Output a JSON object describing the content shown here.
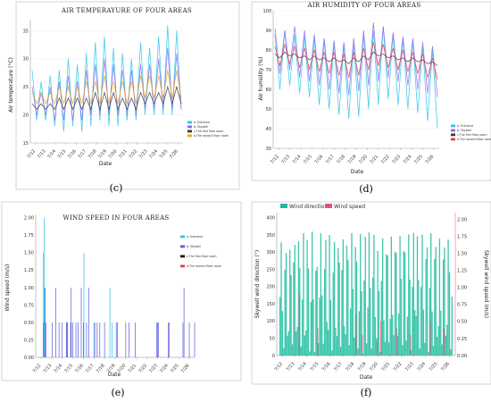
{
  "chart_data": [
    {
      "id": "c",
      "type": "line",
      "panel_label": "(c)",
      "title": "AIR TEMPERAYURE OF FOUR AREAS",
      "xlabel": "Date",
      "ylabel": "Air temperature (°C)",
      "x_ticks": [
        "7/12",
        "7/13",
        "7/14",
        "7/15",
        "7/16",
        "7/17",
        "7/18",
        "7/19",
        "7/20",
        "7/21",
        "7/22",
        "7/23",
        "7/24",
        "7/25",
        "7/26"
      ],
      "ylim": [
        15,
        37
      ],
      "y_ticks": [
        15,
        20,
        25,
        30,
        35
      ],
      "legend_position": "right",
      "series": [
        {
          "name": "a. Entrance",
          "color": "#29c4e8",
          "values": [
            28,
            19,
            26,
            19,
            27,
            18,
            28,
            17,
            30,
            18,
            29,
            17,
            31,
            18,
            33,
            19,
            34,
            18,
            32,
            18,
            31,
            19,
            30,
            19,
            33,
            20,
            32,
            20,
            34,
            20,
            36,
            20,
            35,
            21
          ]
        },
        {
          "name": "b. Skywell",
          "color": "#8a6cf0",
          "values": [
            25,
            20,
            24,
            20,
            25,
            19,
            26,
            19,
            27,
            19,
            26,
            19,
            28,
            20,
            29,
            20,
            30,
            20,
            29,
            20,
            28,
            20,
            28,
            20,
            29,
            21,
            29,
            21,
            30,
            21,
            32,
            21,
            31,
            21
          ]
        },
        {
          "name": "c.The first floor room",
          "color": "#3a3a3a",
          "values": [
            22,
            21,
            22,
            21,
            22,
            21,
            23,
            21,
            23,
            21,
            23,
            21,
            23,
            21,
            24,
            21,
            24,
            21,
            24,
            21,
            23,
            21,
            23,
            21,
            24,
            22,
            24,
            22,
            24,
            22,
            25,
            22,
            25,
            22
          ]
        },
        {
          "name": "d.The second floor room",
          "color": "#f5a623",
          "values": [
            24,
            22,
            24,
            22,
            24,
            22,
            25,
            22,
            25,
            22,
            25,
            22,
            26,
            22,
            26,
            22,
            27,
            22,
            26,
            22,
            26,
            22,
            26,
            22,
            27,
            23,
            27,
            23,
            27,
            23,
            28,
            23,
            28,
            23
          ]
        }
      ]
    },
    {
      "id": "d",
      "type": "line",
      "panel_label": "(d)",
      "title": "AIR HUMIDITY OF FOUR AREAS",
      "xlabel": "Date",
      "ylabel": "Air humidity (%)",
      "x_ticks": [
        "7/12",
        "7/13",
        "7/14",
        "7/15",
        "7/16",
        "7/17",
        "7/18",
        "7/19",
        "7/20",
        "7/21",
        "7/22",
        "7/23",
        "7/24",
        "7/25",
        "7/26"
      ],
      "ylim": [
        30,
        100
      ],
      "y_ticks": [
        30,
        40,
        50,
        60,
        70,
        80,
        90,
        100
      ],
      "legend_position": "right",
      "series": [
        {
          "name": "a. Entrance",
          "color": "#29c4e8",
          "values": [
            88,
            60,
            90,
            62,
            88,
            58,
            87,
            56,
            86,
            52,
            85,
            50,
            84,
            47,
            83,
            45,
            84,
            46,
            88,
            50,
            90,
            52,
            92,
            55,
            88,
            52,
            86,
            50,
            85,
            48,
            82,
            44,
            80,
            40
          ]
        },
        {
          "name": "b. Skywell",
          "color": "#8a6cf0",
          "values": [
            91,
            68,
            90,
            70,
            92,
            66,
            90,
            64,
            88,
            62,
            86,
            60,
            85,
            58,
            84,
            57,
            86,
            59,
            90,
            62,
            94,
            64,
            92,
            66,
            89,
            64,
            87,
            62,
            86,
            60,
            84,
            58,
            82,
            56
          ]
        },
        {
          "name": "c.The first floor room",
          "color": "#3a3a3a",
          "values": [
            78,
            76,
            79,
            77,
            78,
            76,
            77,
            75,
            77,
            75,
            76,
            74,
            76,
            74,
            75,
            73,
            76,
            74,
            77,
            75,
            79,
            77,
            78,
            76,
            77,
            75,
            76,
            74,
            76,
            74,
            75,
            73,
            74,
            72
          ]
        },
        {
          "name": "d.The second floor room",
          "color": "#e8394a",
          "values": [
            82,
            72,
            83,
            73,
            82,
            71,
            81,
            70,
            80,
            69,
            79,
            68,
            79,
            67,
            78,
            66,
            79,
            67,
            81,
            70,
            84,
            72,
            83,
            71,
            81,
            70,
            80,
            69,
            79,
            68,
            78,
            66,
            76,
            65
          ]
        }
      ]
    },
    {
      "id": "e",
      "type": "bar",
      "panel_label": "(e)",
      "title": "WIND SPEED IN FOUR AREAS",
      "xlabel": "Date",
      "ylabel": "Wind speed  (m/s)",
      "x_ticks": [
        "7/12",
        "7/13",
        "7/14",
        "7/15",
        "7/16",
        "7/17",
        "7/18",
        "7/19",
        "7/20",
        "7/21",
        "7/22",
        "7/23",
        "7/24",
        "7/25",
        "7/26"
      ],
      "ylim": [
        0,
        2.05
      ],
      "y_ticks": [
        "0.00",
        "0.25",
        "0.50",
        "0.75",
        "1.00",
        "1.25",
        "1.50",
        "1.75",
        "2.00"
      ],
      "legend_position": "right",
      "series": [
        {
          "name": "a. Entrance",
          "color": "#29c4e8",
          "points": [
            [
              7.2,
              1.5
            ],
            [
              7.3,
              2.0
            ],
            [
              7.35,
              1.0
            ],
            [
              7.4,
              0.5
            ],
            [
              11.05,
              1.5
            ],
            [
              12.1,
              0.5
            ],
            [
              13.5,
              1.0
            ],
            [
              13.7,
              0.5
            ]
          ]
        },
        {
          "name": "b. Skywell",
          "color": "#5a5ae0",
          "points": [
            [
              7.25,
              0.5
            ],
            [
              7.4,
              1.0
            ],
            [
              7.45,
              0.5
            ],
            [
              8.05,
              0.5
            ],
            [
              8.4,
              1.0
            ],
            [
              8.7,
              0.5
            ],
            [
              9.0,
              0.5
            ],
            [
              9.4,
              0.5
            ],
            [
              9.45,
              0.5
            ],
            [
              9.5,
              0.5
            ],
            [
              9.8,
              0.5
            ],
            [
              9.85,
              1.0
            ],
            [
              10.0,
              0.5
            ],
            [
              10.3,
              0.5
            ],
            [
              10.5,
              0.5
            ],
            [
              10.8,
              1.0
            ],
            [
              11.0,
              0.5
            ],
            [
              11.3,
              0.5
            ],
            [
              11.5,
              1.0
            ],
            [
              12.0,
              0.5
            ],
            [
              12.3,
              0.5
            ],
            [
              12.55,
              0.5
            ],
            [
              13.0,
              0.5
            ],
            [
              14.1,
              0.5
            ],
            [
              14.2,
              0.5
            ],
            [
              15.0,
              0.5
            ],
            [
              15.3,
              0.5
            ],
            [
              15.9,
              0.5
            ],
            [
              17.9,
              0.5
            ],
            [
              18.0,
              0.5
            ],
            [
              18.1,
              0.5
            ],
            [
              19.0,
              0.5
            ],
            [
              19.1,
              0.5
            ],
            [
              20.4,
              0.5
            ],
            [
              20.5,
              1.0
            ],
            [
              21.0,
              0.5
            ],
            [
              21.5,
              0.5
            ]
          ]
        },
        {
          "name": "c.The first floor room",
          "color": "#111111",
          "points": []
        },
        {
          "name": "d.The second floor room",
          "color": "#e8394a",
          "points": []
        }
      ]
    },
    {
      "id": "f",
      "type": "bar",
      "panel_label": "(f)",
      "xlabel": "Date",
      "ylabel": "Skywell wind direction (°)",
      "ylabel_right": "Skywell wind speed  (m/s)",
      "x_ticks": [
        "7/12",
        "7/13",
        "7/14",
        "7/15",
        "7/16",
        "7/17",
        "7/18",
        "7/19",
        "7/20",
        "7/21",
        "7/22",
        "7/23",
        "7/24",
        "7/25",
        "7/26"
      ],
      "ylim": [
        0,
        415
      ],
      "y_ticks": [
        0,
        50,
        100,
        150,
        200,
        250,
        300,
        350,
        400
      ],
      "ylim_right": [
        0,
        2.1
      ],
      "y_ticks_right": [
        "0.00",
        "0.25",
        "0.50",
        "0.75",
        "1.00",
        "1.25",
        "1.50",
        "1.75",
        "2.00"
      ],
      "legend_position": "top-left",
      "series": [
        {
          "name": "Wind direction",
          "color": "#1abc9c",
          "axis": "left",
          "day_max": [
            330,
            355,
            360,
            355,
            350,
            358,
            355,
            360,
            350,
            355,
            360,
            355,
            358,
            355
          ],
          "day_min": [
            10,
            20,
            5,
            30,
            10,
            15,
            5,
            20,
            10,
            30,
            15,
            20,
            10,
            15
          ]
        },
        {
          "name": "Wind speed",
          "color": "#e8507a",
          "axis": "right",
          "points": [
            [
              1.6,
              0.9
            ],
            [
              3.1,
              0.4
            ],
            [
              6.2,
              0.6
            ],
            [
              6.7,
              0.3
            ],
            [
              7.9,
              0.2
            ],
            [
              8.2,
              0.5
            ],
            [
              9.5,
              0.4
            ],
            [
              10.6,
              0.3
            ],
            [
              12.2,
              0.5
            ],
            [
              13.3,
              0.4
            ]
          ]
        }
      ]
    }
  ]
}
